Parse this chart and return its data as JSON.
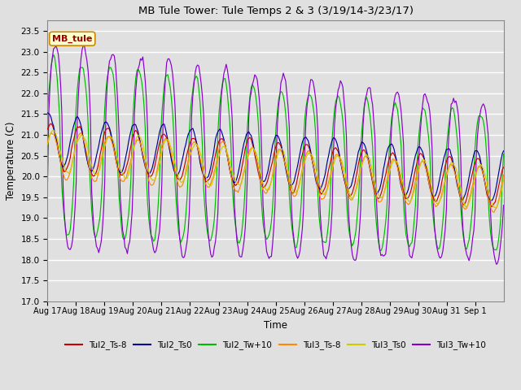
{
  "title": "MB Tule Tower: Tule Temps 2 & 3 (3/19/14-3/23/17)",
  "xlabel": "Time",
  "ylabel": "Temperature (C)",
  "ylim": [
    17.0,
    23.75
  ],
  "yticks": [
    17.0,
    17.5,
    18.0,
    18.5,
    19.0,
    19.5,
    20.0,
    20.5,
    21.0,
    21.5,
    22.0,
    22.5,
    23.0,
    23.5
  ],
  "background_color": "#e0e0e0",
  "grid_color": "#ffffff",
  "series": {
    "Tul2_Ts-8": {
      "color": "#cc0000"
    },
    "Tul2_Ts0": {
      "color": "#000099"
    },
    "Tul2_Tw+10": {
      "color": "#00bb00"
    },
    "Tul3_Ts-8": {
      "color": "#ff8800"
    },
    "Tul3_Ts0": {
      "color": "#cccc00"
    },
    "Tul3_Tw+10": {
      "color": "#8800cc"
    }
  },
  "legend_label": "MB_tule",
  "x_tick_labels": [
    "Aug 17",
    "Aug 18",
    "Aug 19",
    "Aug 20",
    "Aug 21",
    "Aug 22",
    "Aug 23",
    "Aug 24",
    "Aug 25",
    "Aug 26",
    "Aug 27",
    "Aug 28",
    "Aug 29",
    "Aug 30",
    "Aug 31",
    "Sep 1"
  ]
}
